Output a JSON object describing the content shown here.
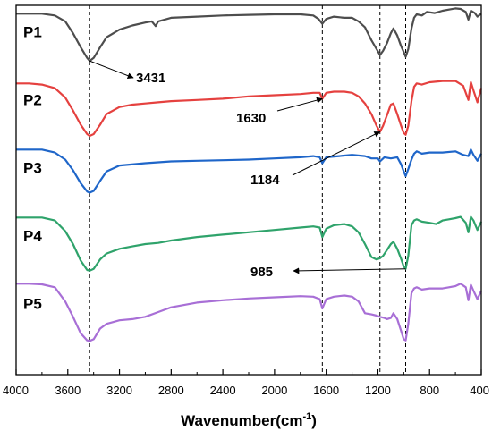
{
  "chart_data": {
    "type": "line",
    "title": "",
    "xlabel": "Wavenumber(cm",
    "xlabel_sup": "-1",
    "xlabel_close": ")",
    "ylabel": "",
    "xlim": [
      4000,
      400
    ],
    "x_reversed": true,
    "x_ticks": [
      "4000",
      "3600",
      "3200",
      "2800",
      "2400",
      "2000",
      "1600",
      "1200",
      "800",
      "400"
    ],
    "grid": false,
    "y_axis_ticks": false,
    "series": [
      {
        "name": "P1",
        "color": "#4d4d4d",
        "offset": 4,
        "points": [
          [
            4000,
            0.95
          ],
          [
            3900,
            0.95
          ],
          [
            3800,
            0.95
          ],
          [
            3700,
            0.92
          ],
          [
            3620,
            0.82
          ],
          [
            3560,
            0.62
          ],
          [
            3500,
            0.38
          ],
          [
            3450,
            0.2
          ],
          [
            3431,
            0.15
          ],
          [
            3400,
            0.2
          ],
          [
            3350,
            0.38
          ],
          [
            3300,
            0.55
          ],
          [
            3200,
            0.68
          ],
          [
            3100,
            0.75
          ],
          [
            3000,
            0.8
          ],
          [
            2950,
            0.82
          ],
          [
            2920,
            0.74
          ],
          [
            2900,
            0.82
          ],
          [
            2800,
            0.88
          ],
          [
            2600,
            0.9
          ],
          [
            2400,
            0.92
          ],
          [
            2200,
            0.93
          ],
          [
            2000,
            0.94
          ],
          [
            1800,
            0.94
          ],
          [
            1700,
            0.92
          ],
          [
            1660,
            0.86
          ],
          [
            1630,
            0.78
          ],
          [
            1600,
            0.86
          ],
          [
            1540,
            0.9
          ],
          [
            1460,
            0.88
          ],
          [
            1400,
            0.88
          ],
          [
            1350,
            0.82
          ],
          [
            1300,
            0.72
          ],
          [
            1250,
            0.5
          ],
          [
            1210,
            0.35
          ],
          [
            1184,
            0.25
          ],
          [
            1160,
            0.32
          ],
          [
            1130,
            0.45
          ],
          [
            1100,
            0.62
          ],
          [
            1080,
            0.7
          ],
          [
            1050,
            0.58
          ],
          [
            1020,
            0.4
          ],
          [
            1000,
            0.3
          ],
          [
            985,
            0.22
          ],
          [
            965,
            0.35
          ],
          [
            940,
            0.7
          ],
          [
            920,
            0.88
          ],
          [
            900,
            0.94
          ],
          [
            860,
            0.92
          ],
          [
            820,
            0.98
          ],
          [
            760,
            0.96
          ],
          [
            700,
            1.0
          ],
          [
            650,
            1.02
          ],
          [
            600,
            1.04
          ],
          [
            560,
            1.03
          ],
          [
            520,
            0.98
          ],
          [
            500,
            0.85
          ],
          [
            480,
            1.0
          ],
          [
            450,
            0.96
          ],
          [
            430,
            0.9
          ],
          [
            400,
            0.95
          ]
        ]
      },
      {
        "name": "P2",
        "color": "#e5413f",
        "offset": 3,
        "points": [
          [
            4000,
            0.92
          ],
          [
            3900,
            0.92
          ],
          [
            3800,
            0.9
          ],
          [
            3700,
            0.84
          ],
          [
            3620,
            0.68
          ],
          [
            3560,
            0.46
          ],
          [
            3500,
            0.22
          ],
          [
            3450,
            0.06
          ],
          [
            3431,
            0.03
          ],
          [
            3400,
            0.06
          ],
          [
            3350,
            0.22
          ],
          [
            3300,
            0.4
          ],
          [
            3200,
            0.52
          ],
          [
            3100,
            0.56
          ],
          [
            3000,
            0.58
          ],
          [
            2900,
            0.6
          ],
          [
            2800,
            0.62
          ],
          [
            2600,
            0.64
          ],
          [
            2400,
            0.66
          ],
          [
            2200,
            0.7
          ],
          [
            2000,
            0.72
          ],
          [
            1800,
            0.74
          ],
          [
            1700,
            0.76
          ],
          [
            1650,
            0.76
          ],
          [
            1630,
            0.66
          ],
          [
            1600,
            0.76
          ],
          [
            1540,
            0.78
          ],
          [
            1460,
            0.78
          ],
          [
            1400,
            0.76
          ],
          [
            1350,
            0.7
          ],
          [
            1300,
            0.58
          ],
          [
            1250,
            0.4
          ],
          [
            1210,
            0.2
          ],
          [
            1184,
            0.1
          ],
          [
            1160,
            0.2
          ],
          [
            1130,
            0.38
          ],
          [
            1100,
            0.56
          ],
          [
            1080,
            0.58
          ],
          [
            1050,
            0.4
          ],
          [
            1020,
            0.2
          ],
          [
            1000,
            0.08
          ],
          [
            985,
            0.05
          ],
          [
            965,
            0.2
          ],
          [
            940,
            0.62
          ],
          [
            920,
            0.86
          ],
          [
            900,
            0.92
          ],
          [
            860,
            0.9
          ],
          [
            800,
            0.94
          ],
          [
            700,
            0.96
          ],
          [
            600,
            0.96
          ],
          [
            540,
            0.88
          ],
          [
            500,
            0.64
          ],
          [
            480,
            0.94
          ],
          [
            460,
            0.8
          ],
          [
            430,
            0.6
          ],
          [
            400,
            0.84
          ]
        ]
      },
      {
        "name": "P3",
        "color": "#1f66c9",
        "offset": 2,
        "points": [
          [
            4000,
            0.95
          ],
          [
            3900,
            0.95
          ],
          [
            3800,
            0.95
          ],
          [
            3700,
            0.9
          ],
          [
            3620,
            0.78
          ],
          [
            3560,
            0.6
          ],
          [
            3500,
            0.38
          ],
          [
            3450,
            0.24
          ],
          [
            3431,
            0.22
          ],
          [
            3400,
            0.25
          ],
          [
            3350,
            0.42
          ],
          [
            3300,
            0.58
          ],
          [
            3200,
            0.68
          ],
          [
            3000,
            0.72
          ],
          [
            2800,
            0.75
          ],
          [
            2600,
            0.76
          ],
          [
            2400,
            0.77
          ],
          [
            2200,
            0.78
          ],
          [
            2000,
            0.8
          ],
          [
            1800,
            0.82
          ],
          [
            1700,
            0.84
          ],
          [
            1650,
            0.82
          ],
          [
            1630,
            0.72
          ],
          [
            1600,
            0.82
          ],
          [
            1500,
            0.84
          ],
          [
            1400,
            0.86
          ],
          [
            1300,
            0.84
          ],
          [
            1250,
            0.8
          ],
          [
            1200,
            0.8
          ],
          [
            1184,
            0.75
          ],
          [
            1150,
            0.82
          ],
          [
            1100,
            0.8
          ],
          [
            1050,
            0.82
          ],
          [
            1020,
            0.7
          ],
          [
            1000,
            0.58
          ],
          [
            985,
            0.5
          ],
          [
            965,
            0.62
          ],
          [
            940,
            0.78
          ],
          [
            920,
            0.88
          ],
          [
            900,
            0.92
          ],
          [
            860,
            0.88
          ],
          [
            800,
            0.9
          ],
          [
            700,
            0.9
          ],
          [
            600,
            0.92
          ],
          [
            540,
            0.86
          ],
          [
            500,
            0.84
          ],
          [
            480,
            0.95
          ],
          [
            460,
            0.86
          ],
          [
            430,
            0.76
          ],
          [
            400,
            0.88
          ]
        ]
      },
      {
        "name": "P4",
        "color": "#2fa36b",
        "offset": 1,
        "points": [
          [
            4000,
            0.95
          ],
          [
            3900,
            0.95
          ],
          [
            3800,
            0.95
          ],
          [
            3700,
            0.9
          ],
          [
            3620,
            0.72
          ],
          [
            3560,
            0.5
          ],
          [
            3500,
            0.22
          ],
          [
            3450,
            0.06
          ],
          [
            3431,
            0.05
          ],
          [
            3400,
            0.08
          ],
          [
            3350,
            0.24
          ],
          [
            3300,
            0.34
          ],
          [
            3200,
            0.42
          ],
          [
            3100,
            0.46
          ],
          [
            3000,
            0.5
          ],
          [
            2900,
            0.52
          ],
          [
            2800,
            0.56
          ],
          [
            2600,
            0.62
          ],
          [
            2400,
            0.66
          ],
          [
            2200,
            0.7
          ],
          [
            2000,
            0.74
          ],
          [
            1800,
            0.78
          ],
          [
            1700,
            0.8
          ],
          [
            1650,
            0.78
          ],
          [
            1630,
            0.62
          ],
          [
            1600,
            0.76
          ],
          [
            1540,
            0.82
          ],
          [
            1460,
            0.84
          ],
          [
            1400,
            0.8
          ],
          [
            1350,
            0.7
          ],
          [
            1300,
            0.5
          ],
          [
            1250,
            0.28
          ],
          [
            1210,
            0.24
          ],
          [
            1184,
            0.26
          ],
          [
            1160,
            0.3
          ],
          [
            1130,
            0.4
          ],
          [
            1100,
            0.5
          ],
          [
            1080,
            0.54
          ],
          [
            1050,
            0.42
          ],
          [
            1020,
            0.25
          ],
          [
            1000,
            0.12
          ],
          [
            985,
            0.08
          ],
          [
            965,
            0.3
          ],
          [
            940,
            0.82
          ],
          [
            920,
            0.9
          ],
          [
            900,
            0.92
          ],
          [
            860,
            0.88
          ],
          [
            800,
            0.86
          ],
          [
            750,
            0.84
          ],
          [
            700,
            0.9
          ],
          [
            650,
            0.92
          ],
          [
            600,
            0.94
          ],
          [
            560,
            0.96
          ],
          [
            520,
            0.86
          ],
          [
            500,
            0.7
          ],
          [
            480,
            0.96
          ],
          [
            460,
            0.9
          ],
          [
            430,
            0.74
          ],
          [
            400,
            0.88
          ]
        ]
      },
      {
        "name": "P5",
        "color": "#a86fd6",
        "offset": 0,
        "points": [
          [
            4000,
            0.98
          ],
          [
            3900,
            0.98
          ],
          [
            3800,
            0.97
          ],
          [
            3700,
            0.92
          ],
          [
            3620,
            0.68
          ],
          [
            3560,
            0.42
          ],
          [
            3500,
            0.14
          ],
          [
            3450,
            0.02
          ],
          [
            3431,
            0.01
          ],
          [
            3400,
            0.04
          ],
          [
            3350,
            0.22
          ],
          [
            3300,
            0.3
          ],
          [
            3200,
            0.36
          ],
          [
            3100,
            0.38
          ],
          [
            3000,
            0.42
          ],
          [
            2900,
            0.5
          ],
          [
            2800,
            0.58
          ],
          [
            2600,
            0.66
          ],
          [
            2400,
            0.7
          ],
          [
            2200,
            0.73
          ],
          [
            2000,
            0.75
          ],
          [
            1800,
            0.77
          ],
          [
            1700,
            0.76
          ],
          [
            1650,
            0.72
          ],
          [
            1630,
            0.56
          ],
          [
            1600,
            0.72
          ],
          [
            1540,
            0.76
          ],
          [
            1460,
            0.78
          ],
          [
            1400,
            0.76
          ],
          [
            1350,
            0.68
          ],
          [
            1300,
            0.48
          ],
          [
            1250,
            0.46
          ],
          [
            1210,
            0.44
          ],
          [
            1184,
            0.42
          ],
          [
            1150,
            0.4
          ],
          [
            1130,
            0.38
          ],
          [
            1100,
            0.4
          ],
          [
            1080,
            0.48
          ],
          [
            1050,
            0.38
          ],
          [
            1020,
            0.18
          ],
          [
            1000,
            0.04
          ],
          [
            985,
            0.02
          ],
          [
            965,
            0.3
          ],
          [
            940,
            0.82
          ],
          [
            920,
            0.9
          ],
          [
            900,
            0.92
          ],
          [
            860,
            0.88
          ],
          [
            800,
            0.9
          ],
          [
            700,
            0.9
          ],
          [
            650,
            0.92
          ],
          [
            600,
            0.94
          ],
          [
            560,
            0.98
          ],
          [
            520,
            0.92
          ],
          [
            500,
            0.7
          ],
          [
            480,
            0.96
          ],
          [
            460,
            0.86
          ],
          [
            430,
            0.72
          ],
          [
            400,
            0.86
          ]
        ]
      }
    ],
    "reference_lines": [
      3431,
      1630,
      1184,
      985
    ],
    "annotations": [
      {
        "text": "3431",
        "x": 3431,
        "series": "P1"
      },
      {
        "text": "1630",
        "x": 1630,
        "series": "P2"
      },
      {
        "text": "1184",
        "x": 1184,
        "series": "P2"
      },
      {
        "text": "985",
        "x": 985,
        "series": "P4"
      }
    ]
  }
}
